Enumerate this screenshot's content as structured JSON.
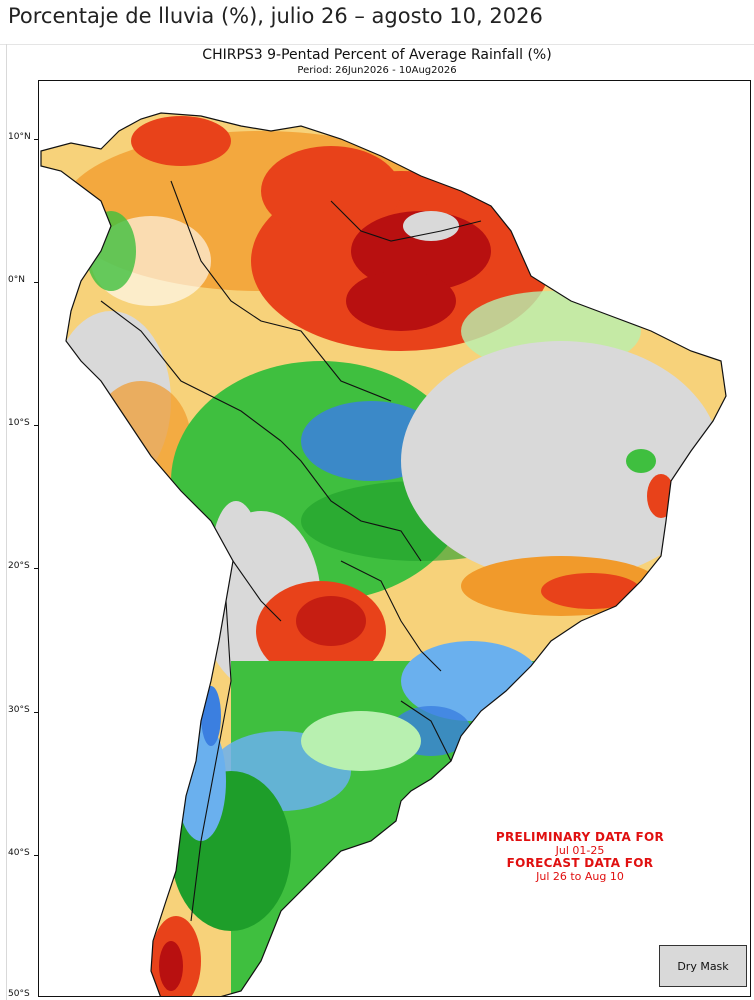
{
  "header": {
    "title": "Porcentaje de lluvia (%), julio 26 – agosto 10, 2026"
  },
  "map": {
    "title": "CHIRPS3 9-Pentad Percent of Average Rainfall (%)",
    "period": "Period: 26Jun2026 - 10Aug2026",
    "latitude_labels": [
      "10°N",
      "0°N",
      "10°S",
      "20°S",
      "30°S",
      "40°S",
      "50°S"
    ],
    "notice": {
      "preliminary_label": "PRELIMINARY DATA FOR",
      "preliminary_range": "Jul 01-25",
      "forecast_label": "FORECAST DATA FOR",
      "forecast_range": "Jul 26 to Aug 10"
    },
    "legend": {
      "dry_mask_label": "Dry Mask"
    },
    "colors": {
      "very_dry": "#b81010",
      "dry": "#e8421a",
      "below": "#f19a2b",
      "slightly_below": "#f7d27a",
      "near_normal": "#ffffff",
      "slightly_above": "#b8f0b0",
      "above": "#3fbf3f",
      "well_above": "#1e9e2a",
      "very_wet": "#6ab0ee",
      "extremely_wet": "#3b7fe0",
      "dry_mask": "#d9d9d9",
      "ocean": "#ffffff"
    }
  }
}
